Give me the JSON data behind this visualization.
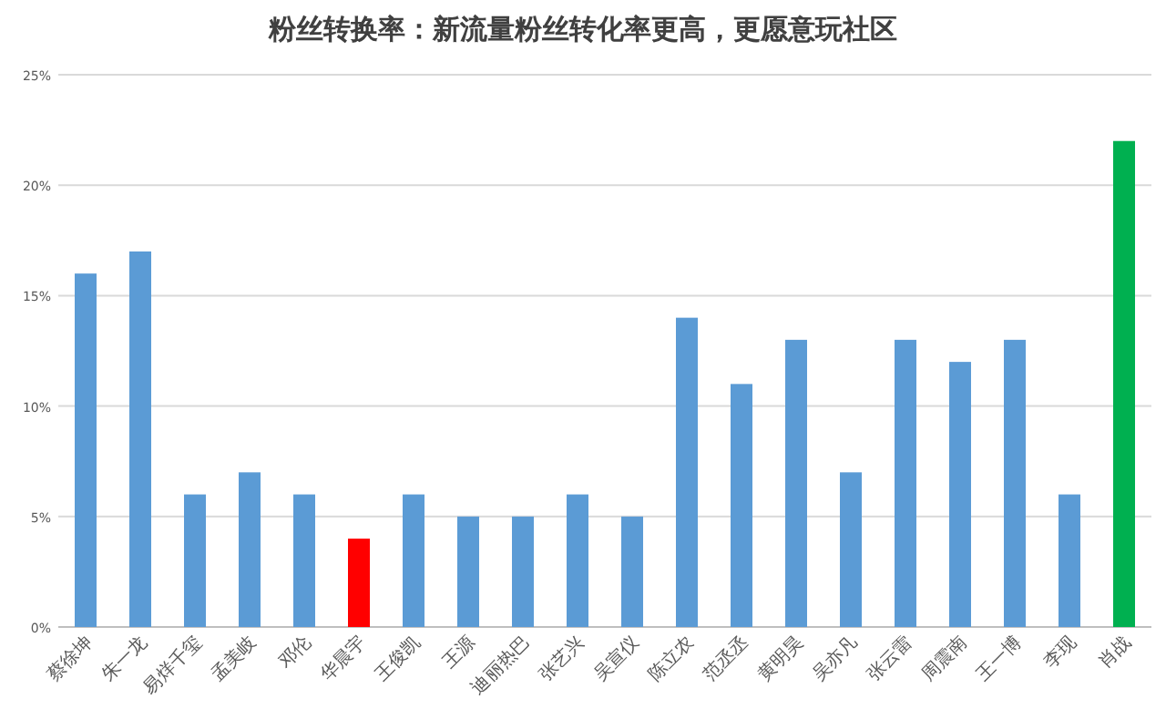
{
  "chart_data": {
    "type": "bar",
    "title": "粉丝转换率：新流量粉丝转化率更高，更愿意玩社区",
    "categories": [
      "蔡徐坤",
      "朱一龙",
      "易烊千玺",
      "孟美岐",
      "邓伦",
      "华晨宇",
      "王俊凯",
      "王源",
      "迪丽热巴",
      "张艺兴",
      "吴宣仪",
      "陈立农",
      "范丞丞",
      "黄明昊",
      "吴亦凡",
      "张云雷",
      "周震南",
      "王一博",
      "李现",
      "肖战"
    ],
    "values": [
      16,
      17,
      6,
      7,
      6,
      4,
      6,
      5,
      5,
      6,
      5,
      14,
      11,
      13,
      7,
      13,
      12,
      13,
      6,
      22
    ],
    "colors": [
      "#5b9bd5",
      "#5b9bd5",
      "#5b9bd5",
      "#5b9bd5",
      "#5b9bd5",
      "#ff0000",
      "#5b9bd5",
      "#5b9bd5",
      "#5b9bd5",
      "#5b9bd5",
      "#5b9bd5",
      "#5b9bd5",
      "#5b9bd5",
      "#5b9bd5",
      "#5b9bd5",
      "#5b9bd5",
      "#5b9bd5",
      "#5b9bd5",
      "#5b9bd5",
      "#00b050"
    ],
    "ylim": [
      0,
      25
    ],
    "yticks": [
      {
        "value": 0,
        "label": "0%"
      },
      {
        "value": 5,
        "label": "5%"
      },
      {
        "value": 10,
        "label": "10%"
      },
      {
        "value": 15,
        "label": "15%"
      },
      {
        "value": 20,
        "label": "20%"
      },
      {
        "value": 25,
        "label": "25%"
      }
    ],
    "grid": "y"
  }
}
